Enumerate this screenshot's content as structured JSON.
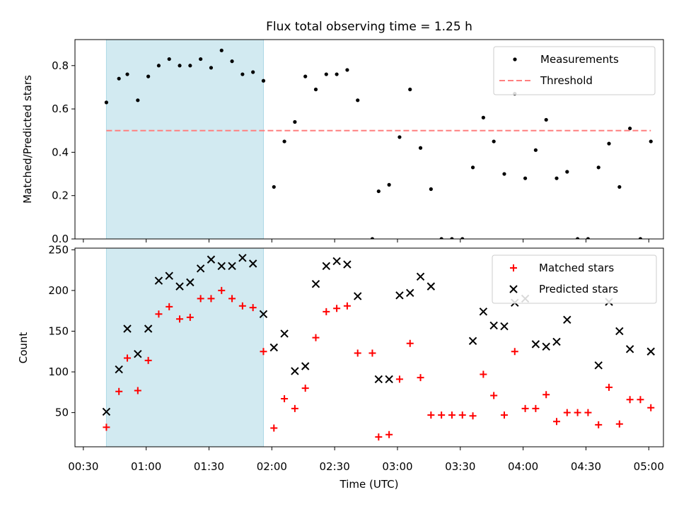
{
  "chart_data": [
    {
      "type": "scatter",
      "title": "Flux total observing time = 1.25 h",
      "xlabel": "",
      "ylabel": "Matched/Predicted stars",
      "xlim": [
        "00:26",
        "05:07"
      ],
      "ylim": [
        0,
        0.92
      ],
      "yticks": [
        0,
        0.2,
        0.4,
        0.6,
        0.8
      ],
      "ytick_labels": [
        "0.0",
        "0.2",
        "0.4",
        "0.6",
        "0.8"
      ],
      "shaded_region": {
        "start": "00:41",
        "end": "01:56",
        "color": "#add8e6"
      },
      "legend": {
        "position": "top-right",
        "entries": [
          "Measurements",
          "Threshold"
        ]
      },
      "series": [
        {
          "name": "Measurements",
          "marker": "dot",
          "color": "#000000",
          "points": [
            [
              "00:41",
              0.63
            ],
            [
              "00:47",
              0.74
            ],
            [
              "00:51",
              0.76
            ],
            [
              "00:56",
              0.64
            ],
            [
              "01:01",
              0.75
            ],
            [
              "01:06",
              0.8
            ],
            [
              "01:11",
              0.83
            ],
            [
              "01:16",
              0.8
            ],
            [
              "01:21",
              0.8
            ],
            [
              "01:26",
              0.83
            ],
            [
              "01:31",
              0.79
            ],
            [
              "01:36",
              0.87
            ],
            [
              "01:41",
              0.82
            ],
            [
              "01:46",
              0.76
            ],
            [
              "01:51",
              0.77
            ],
            [
              "01:56",
              0.73
            ],
            [
              "02:01",
              0.24
            ],
            [
              "02:06",
              0.45
            ],
            [
              "02:11",
              0.54
            ],
            [
              "02:16",
              0.75
            ],
            [
              "02:21",
              0.69
            ],
            [
              "02:26",
              0.76
            ],
            [
              "02:31",
              0.76
            ],
            [
              "02:36",
              0.78
            ],
            [
              "02:41",
              0.64
            ],
            [
              "02:48",
              0.0
            ],
            [
              "02:51",
              0.22
            ],
            [
              "02:56",
              0.25
            ],
            [
              "03:01",
              0.47
            ],
            [
              "03:06",
              0.69
            ],
            [
              "03:11",
              0.42
            ],
            [
              "03:16",
              0.23
            ],
            [
              "03:21",
              0.0
            ],
            [
              "03:26",
              0.0
            ],
            [
              "03:31",
              0.0
            ],
            [
              "03:36",
              0.33
            ],
            [
              "03:41",
              0.56
            ],
            [
              "03:46",
              0.45
            ],
            [
              "03:51",
              0.3
            ],
            [
              "03:56",
              0.67
            ],
            [
              "04:01",
              0.28
            ],
            [
              "04:06",
              0.41
            ],
            [
              "04:11",
              0.55
            ],
            [
              "04:16",
              0.28
            ],
            [
              "04:21",
              0.31
            ],
            [
              "04:26",
              0.0
            ],
            [
              "04:31",
              0.0
            ],
            [
              "04:36",
              0.33
            ],
            [
              "04:41",
              0.44
            ],
            [
              "04:46",
              0.24
            ],
            [
              "04:51",
              0.51
            ],
            [
              "04:56",
              0.0
            ],
            [
              "05:01",
              0.45
            ]
          ]
        },
        {
          "name": "Threshold",
          "style": "dashed",
          "color": "#ff7f7f",
          "points": [
            [
              "00:41",
              0.5
            ],
            [
              "05:01",
              0.5
            ]
          ]
        }
      ]
    },
    {
      "type": "scatter",
      "title": "",
      "xlabel": "Time (UTC)",
      "ylabel": "Count",
      "xlim": [
        "00:26",
        "05:07"
      ],
      "ylim": [
        8,
        252
      ],
      "yticks": [
        50,
        100,
        150,
        200,
        250
      ],
      "ytick_labels": [
        "50",
        "100",
        "150",
        "200",
        "250"
      ],
      "xticks": [
        "00:30",
        "01:00",
        "01:30",
        "02:00",
        "02:30",
        "03:00",
        "03:30",
        "04:00",
        "04:30",
        "05:00"
      ],
      "shaded_region": {
        "start": "00:41",
        "end": "01:56",
        "color": "#add8e6"
      },
      "legend": {
        "position": "top-right",
        "entries": [
          "Matched stars",
          "Predicted stars"
        ]
      },
      "series": [
        {
          "name": "Matched stars",
          "marker": "plus",
          "color": "#ff0000",
          "points": [
            [
              "00:41",
              32
            ],
            [
              "00:47",
              76
            ],
            [
              "00:51",
              117
            ],
            [
              "00:56",
              77
            ],
            [
              "01:01",
              114
            ],
            [
              "01:06",
              171
            ],
            [
              "01:11",
              180
            ],
            [
              "01:16",
              165
            ],
            [
              "01:21",
              167
            ],
            [
              "01:26",
              190
            ],
            [
              "01:31",
              190
            ],
            [
              "01:36",
              200
            ],
            [
              "01:41",
              190
            ],
            [
              "01:46",
              181
            ],
            [
              "01:51",
              179
            ],
            [
              "01:56",
              125
            ],
            [
              "02:01",
              31
            ],
            [
              "02:06",
              67
            ],
            [
              "02:11",
              55
            ],
            [
              "02:16",
              80
            ],
            [
              "02:21",
              142
            ],
            [
              "02:26",
              174
            ],
            [
              "02:31",
              178
            ],
            [
              "02:36",
              181
            ],
            [
              "02:41",
              123
            ],
            [
              "02:48",
              123
            ],
            [
              "02:51",
              20
            ],
            [
              "02:56",
              23
            ],
            [
              "03:01",
              91
            ],
            [
              "03:06",
              135
            ],
            [
              "03:11",
              93
            ],
            [
              "03:16",
              47
            ],
            [
              "03:21",
              47
            ],
            [
              "03:26",
              47
            ],
            [
              "03:31",
              47
            ],
            [
              "03:36",
              46
            ],
            [
              "03:41",
              97
            ],
            [
              "03:46",
              71
            ],
            [
              "03:51",
              47
            ],
            [
              "03:56",
              125
            ],
            [
              "04:01",
              55
            ],
            [
              "04:06",
              55
            ],
            [
              "04:11",
              72
            ],
            [
              "04:16",
              39
            ],
            [
              "04:21",
              50
            ],
            [
              "04:26",
              50
            ],
            [
              "04:31",
              50
            ],
            [
              "04:36",
              35
            ],
            [
              "04:41",
              81
            ],
            [
              "04:46",
              36
            ],
            [
              "04:51",
              66
            ],
            [
              "04:56",
              66
            ],
            [
              "05:01",
              56
            ]
          ]
        },
        {
          "name": "Predicted stars",
          "marker": "x",
          "color": "#000000",
          "points": [
            [
              "00:41",
              51
            ],
            [
              "00:47",
              103
            ],
            [
              "00:51",
              153
            ],
            [
              "00:56",
              122
            ],
            [
              "01:01",
              153
            ],
            [
              "01:06",
              212
            ],
            [
              "01:11",
              218
            ],
            [
              "01:16",
              205
            ],
            [
              "01:21",
              210
            ],
            [
              "01:26",
              227
            ],
            [
              "01:31",
              238
            ],
            [
              "01:36",
              230
            ],
            [
              "01:41",
              230
            ],
            [
              "01:46",
              240
            ],
            [
              "01:51",
              233
            ],
            [
              "01:56",
              171
            ],
            [
              "02:01",
              130
            ],
            [
              "02:06",
              147
            ],
            [
              "02:11",
              101
            ],
            [
              "02:16",
              107
            ],
            [
              "02:21",
              208
            ],
            [
              "02:26",
              230
            ],
            [
              "02:31",
              236
            ],
            [
              "02:36",
              232
            ],
            [
              "02:41",
              193
            ],
            [
              "02:51",
              91
            ],
            [
              "02:56",
              91
            ],
            [
              "03:01",
              194
            ],
            [
              "03:06",
              197
            ],
            [
              "03:11",
              217
            ],
            [
              "03:16",
              205
            ],
            [
              "03:36",
              138
            ],
            [
              "03:41",
              174
            ],
            [
              "03:46",
              157
            ],
            [
              "03:51",
              156
            ],
            [
              "03:56",
              185
            ],
            [
              "04:01",
              190
            ],
            [
              "04:06",
              134
            ],
            [
              "04:11",
              131
            ],
            [
              "04:16",
              137
            ],
            [
              "04:21",
              164
            ],
            [
              "04:36",
              108
            ],
            [
              "04:41",
              186
            ],
            [
              "04:46",
              150
            ],
            [
              "04:51",
              128
            ],
            [
              "05:01",
              125
            ]
          ]
        }
      ]
    }
  ]
}
